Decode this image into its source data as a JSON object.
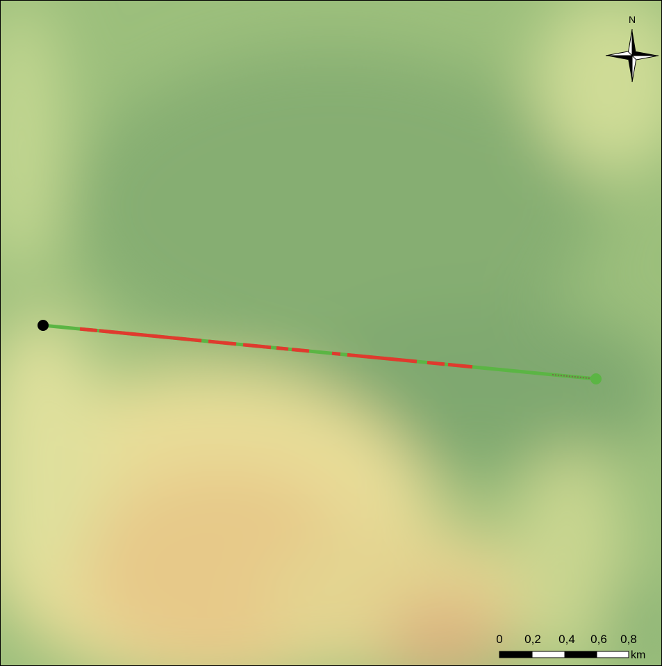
{
  "compass": {
    "label": "N"
  },
  "scale_bar": {
    "labels": [
      "0",
      "0,2",
      "0,4",
      "0,6",
      "0,8"
    ],
    "unit": "km"
  }
}
